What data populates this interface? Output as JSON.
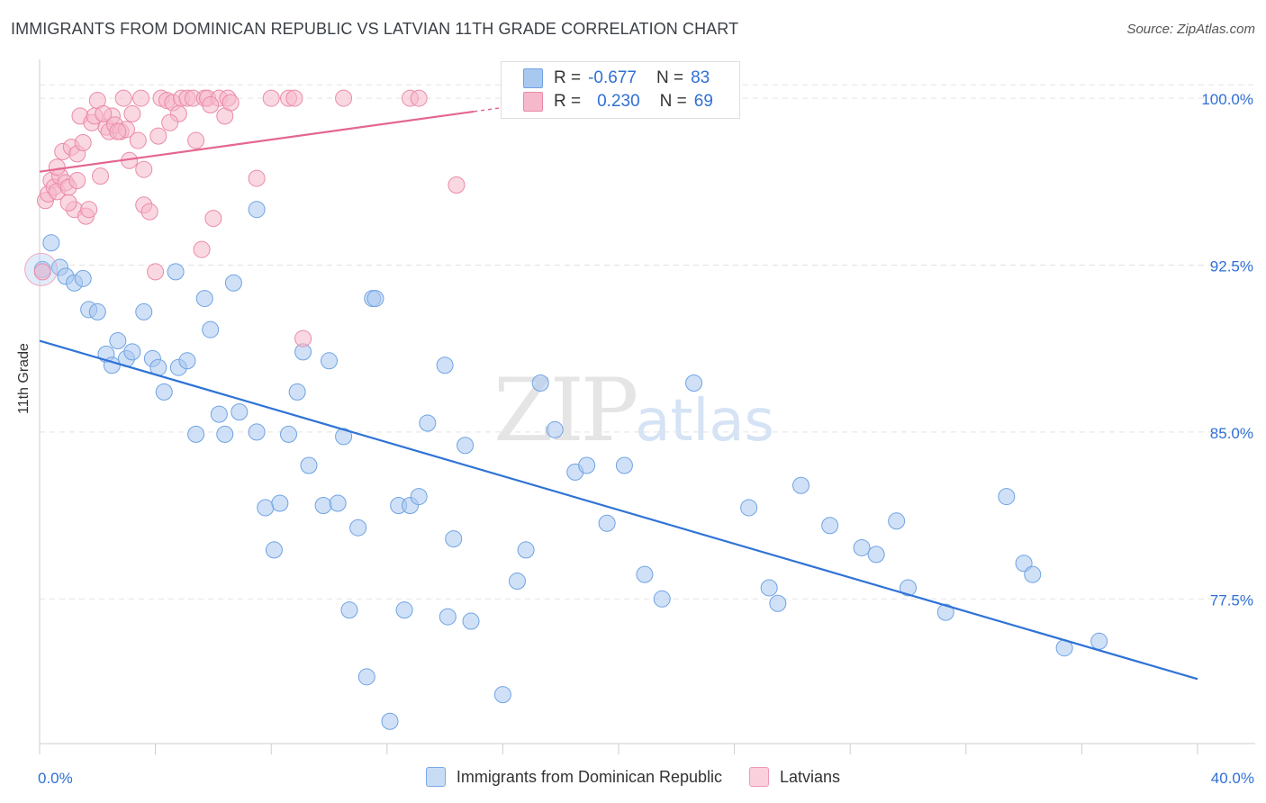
{
  "header": {
    "title": "IMMIGRANTS FROM DOMINICAN REPUBLIC VS LATVIAN 11TH GRADE CORRELATION CHART",
    "source": "Source: ZipAtlas.com"
  },
  "legend": {
    "rows": [
      {
        "r_label": "R =",
        "r_value": "-0.677",
        "n_label": "N =",
        "n_value": "83",
        "color": "#a9c8f0"
      },
      {
        "r_label": "R =",
        "r_value": "0.230",
        "n_label": "N =",
        "n_value": "69",
        "color": "#f6b8cb"
      }
    ]
  },
  "watermark": {
    "zip": "ZIP",
    "atlas": "atlas"
  },
  "chart_data": {
    "type": "scatter",
    "ylabel": "11th Grade",
    "x_range": [
      0,
      40
    ],
    "y_range": [
      71,
      101.5
    ],
    "x_tick_labels": [
      "0.0%",
      "40.0%"
    ],
    "y_ticks": [
      {
        "value": 100.0,
        "label": "100.0%"
      },
      {
        "value": 92.5,
        "label": "92.5%"
      },
      {
        "value": 85.0,
        "label": "85.0%"
      },
      {
        "value": 77.5,
        "label": "77.5%"
      }
    ],
    "series": [
      {
        "name": "Immigrants from Dominican Republic",
        "color": "#a9c8f0",
        "stroke": "#6fa3e3",
        "trend": {
          "x1": 0,
          "y1": 89.1,
          "x2": 40,
          "y2": 73.9,
          "color": "#2f73d6"
        },
        "points": [
          [
            0.1,
            92.3
          ],
          [
            0.4,
            93.5
          ],
          [
            0.7,
            92.4
          ],
          [
            0.9,
            92.0
          ],
          [
            1.2,
            91.7
          ],
          [
            1.5,
            91.9
          ],
          [
            1.7,
            90.5
          ],
          [
            2.0,
            90.4
          ],
          [
            2.3,
            88.5
          ],
          [
            2.5,
            88.0
          ],
          [
            2.7,
            89.1
          ],
          [
            3.0,
            88.3
          ],
          [
            3.2,
            88.6
          ],
          [
            3.6,
            90.4
          ],
          [
            3.9,
            88.3
          ],
          [
            4.1,
            87.9
          ],
          [
            4.3,
            86.8
          ],
          [
            4.7,
            92.2
          ],
          [
            4.8,
            87.9
          ],
          [
            5.1,
            88.2
          ],
          [
            5.4,
            84.9
          ],
          [
            5.7,
            91.0
          ],
          [
            5.9,
            89.6
          ],
          [
            6.2,
            85.8
          ],
          [
            6.4,
            84.9
          ],
          [
            6.7,
            91.7
          ],
          [
            6.9,
            85.9
          ],
          [
            7.5,
            85.0
          ],
          [
            7.5,
            95.0
          ],
          [
            7.8,
            81.6
          ],
          [
            8.1,
            79.7
          ],
          [
            8.3,
            81.8
          ],
          [
            8.6,
            84.9
          ],
          [
            8.9,
            86.8
          ],
          [
            9.1,
            88.6
          ],
          [
            9.3,
            83.5
          ],
          [
            9.8,
            81.7
          ],
          [
            10.0,
            88.2
          ],
          [
            10.3,
            81.8
          ],
          [
            10.5,
            84.8
          ],
          [
            10.7,
            77.0
          ],
          [
            11.0,
            80.7
          ],
          [
            11.3,
            74.0
          ],
          [
            11.5,
            91.0
          ],
          [
            11.6,
            91.0
          ],
          [
            12.1,
            72.0
          ],
          [
            12.4,
            81.7
          ],
          [
            12.6,
            77.0
          ],
          [
            12.8,
            81.7
          ],
          [
            13.1,
            82.1
          ],
          [
            13.4,
            85.4
          ],
          [
            14.0,
            88.0
          ],
          [
            14.1,
            76.7
          ],
          [
            14.3,
            80.2
          ],
          [
            14.7,
            84.4
          ],
          [
            14.9,
            76.5
          ],
          [
            16.0,
            73.2
          ],
          [
            16.5,
            78.3
          ],
          [
            16.8,
            79.7
          ],
          [
            17.3,
            87.2
          ],
          [
            17.8,
            85.1
          ],
          [
            18.5,
            83.2
          ],
          [
            18.9,
            83.5
          ],
          [
            19.6,
            80.9
          ],
          [
            20.2,
            83.5
          ],
          [
            20.9,
            78.6
          ],
          [
            21.5,
            77.5
          ],
          [
            22.6,
            87.2
          ],
          [
            24.5,
            81.6
          ],
          [
            25.2,
            78.0
          ],
          [
            25.5,
            77.3
          ],
          [
            26.3,
            82.6
          ],
          [
            27.3,
            80.8
          ],
          [
            28.4,
            79.8
          ],
          [
            28.9,
            79.5
          ],
          [
            29.6,
            81.0
          ],
          [
            30.0,
            78.0
          ],
          [
            31.3,
            76.9
          ],
          [
            33.4,
            82.1
          ],
          [
            34.0,
            79.1
          ],
          [
            34.3,
            78.6
          ],
          [
            35.4,
            75.3
          ],
          [
            36.6,
            75.6
          ]
        ]
      },
      {
        "name": "Latvians",
        "color": "#f6b8cb",
        "stroke": "#ea8aa8",
        "trend": {
          "x1": 0,
          "y1": 96.7,
          "x2": 15.0,
          "y2": 99.4,
          "dash_to_x": 16.0,
          "color": "#e4668f"
        },
        "points": [
          [
            0.1,
            92.2
          ],
          [
            0.2,
            95.4
          ],
          [
            0.3,
            95.7
          ],
          [
            0.4,
            96.3
          ],
          [
            0.5,
            96.0
          ],
          [
            0.6,
            95.8
          ],
          [
            0.7,
            96.5
          ],
          [
            0.8,
            97.6
          ],
          [
            0.9,
            96.2
          ],
          [
            1.0,
            96.0
          ],
          [
            1.1,
            97.8
          ],
          [
            1.2,
            95.0
          ],
          [
            1.3,
            97.5
          ],
          [
            1.4,
            99.2
          ],
          [
            1.5,
            98.0
          ],
          [
            1.6,
            94.7
          ],
          [
            1.7,
            95.0
          ],
          [
            1.8,
            98.9
          ],
          [
            1.9,
            99.2
          ],
          [
            2.0,
            99.9
          ],
          [
            2.1,
            96.5
          ],
          [
            2.3,
            98.7
          ],
          [
            2.4,
            98.5
          ],
          [
            2.5,
            99.2
          ],
          [
            2.6,
            98.8
          ],
          [
            2.8,
            98.5
          ],
          [
            2.9,
            100.0
          ],
          [
            3.0,
            98.6
          ],
          [
            3.1,
            97.2
          ],
          [
            3.2,
            99.3
          ],
          [
            3.4,
            98.1
          ],
          [
            3.5,
            100.0
          ],
          [
            3.6,
            95.2
          ],
          [
            3.8,
            94.9
          ],
          [
            4.0,
            92.2
          ],
          [
            4.1,
            98.3
          ],
          [
            4.2,
            100.0
          ],
          [
            4.4,
            99.9
          ],
          [
            4.6,
            99.8
          ],
          [
            4.8,
            99.3
          ],
          [
            4.9,
            100.0
          ],
          [
            5.1,
            100.0
          ],
          [
            5.3,
            100.0
          ],
          [
            5.4,
            98.1
          ],
          [
            5.6,
            93.2
          ],
          [
            5.7,
            100.0
          ],
          [
            5.8,
            100.0
          ],
          [
            6.0,
            94.6
          ],
          [
            6.2,
            100.0
          ],
          [
            6.4,
            99.2
          ],
          [
            6.5,
            100.0
          ],
          [
            6.6,
            99.8
          ],
          [
            7.5,
            96.4
          ],
          [
            8.0,
            100.0
          ],
          [
            8.6,
            100.0
          ],
          [
            8.8,
            100.0
          ],
          [
            9.1,
            89.2
          ],
          [
            10.5,
            100.0
          ],
          [
            12.8,
            100.0
          ],
          [
            13.1,
            100.0
          ],
          [
            14.4,
            96.1
          ],
          [
            3.6,
            96.8
          ],
          [
            2.7,
            98.5
          ],
          [
            1.3,
            96.3
          ],
          [
            0.6,
            96.9
          ],
          [
            2.2,
            99.3
          ],
          [
            4.5,
            98.9
          ],
          [
            1.0,
            95.3
          ],
          [
            5.9,
            99.7
          ]
        ]
      }
    ]
  }
}
